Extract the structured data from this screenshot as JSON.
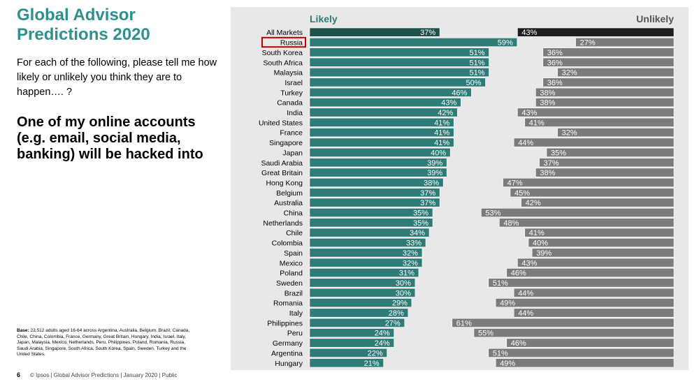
{
  "slide": {
    "title": "Global Advisor Predictions 2020",
    "question": "For each of the following, please tell me how likely or unlikely you think they are to happen…. ?",
    "statement": "One of my online accounts (e.g. email, social media, banking) will be hacked into",
    "base_label": "Base:",
    "base_text": "22,512 adults aged 16-64 across Argentina, Australia, Belgium, Brazil, Canada, Chile, China, Colombia, France, Germany, Great Britain, Hungary, India, Israel, Italy, Japan, Malaysia, Mexico, Netherlands, Peru, Philippines, Poland, Romania, Russia, Saudi Arabia, Singapore, South Africa, South Korea, Spain, Sweden, Turkey and the United States.",
    "page_number": "6",
    "footer": "© Ipsos | Global Advisor Predictions | January 2020 | Public"
  },
  "colors": {
    "title": "#2e8f8f",
    "likely_bar": "#2e7b77",
    "likely_highlight": "#1f4f4c",
    "unlikely_bar": "#7b7b7b",
    "unlikely_highlight": "#1e1e1e",
    "chart_background": "#e8e8e8",
    "highlight_box": "#c00000"
  },
  "chart_data": {
    "type": "bar",
    "title": "",
    "legend": [
      "Likely",
      "Unlikely"
    ],
    "highlighted_category": "Russia",
    "categories": [
      "All Markets",
      "Russia",
      "South Korea",
      "South Africa",
      "Malaysia",
      "Israel",
      "Turkey",
      "Canada",
      "India",
      "United States",
      "France",
      "Singapore",
      "Japan",
      "Saudi Arabia",
      "Great Britain",
      "Hong Kong",
      "Belgium",
      "Australia",
      "China",
      "Netherlands",
      "Chile",
      "Colombia",
      "Spain",
      "Mexico",
      "Poland",
      "Sweden",
      "Brazil",
      "Romania",
      "Italy",
      "Philippines",
      "Peru",
      "Germany",
      "Argentina",
      "Hungary"
    ],
    "series": [
      {
        "name": "Likely",
        "values": [
          37,
          59,
          51,
          51,
          51,
          50,
          46,
          43,
          42,
          41,
          41,
          41,
          40,
          39,
          39,
          38,
          37,
          37,
          35,
          35,
          34,
          33,
          32,
          32,
          31,
          30,
          30,
          29,
          28,
          27,
          24,
          24,
          22,
          21
        ]
      },
      {
        "name": "Unlikely",
        "values": [
          43,
          27,
          36,
          36,
          32,
          36,
          38,
          38,
          43,
          41,
          32,
          44,
          35,
          37,
          38,
          47,
          45,
          42,
          53,
          48,
          41,
          40,
          39,
          43,
          46,
          51,
          44,
          49,
          44,
          61,
          55,
          46,
          51,
          49
        ]
      }
    ],
    "value_suffix": "%",
    "xlim": [
      0,
      100
    ]
  }
}
